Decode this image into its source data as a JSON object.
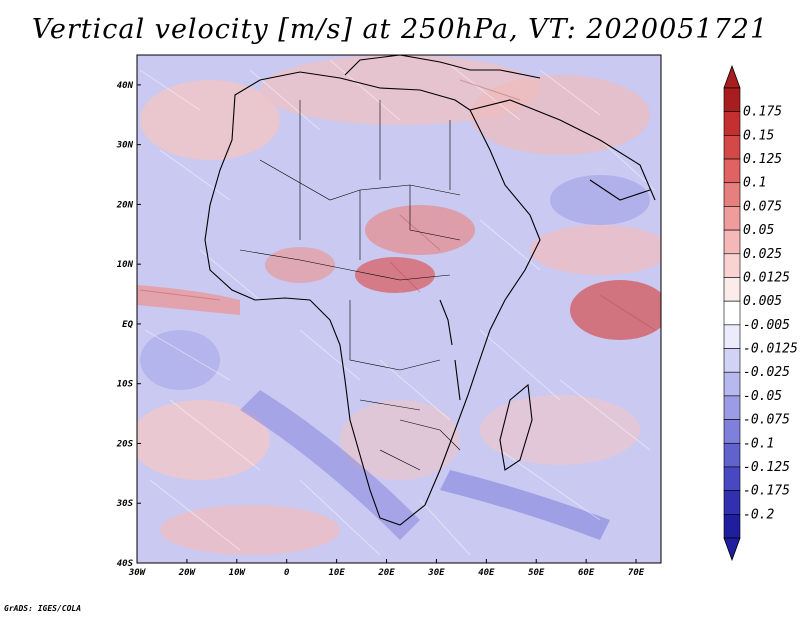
{
  "title": "Vertical velocity [m/s] at 250hPa, VT: 2020051721",
  "credit": "GrADS: IGES/COLA",
  "map": {
    "lat_range": [
      -40,
      45
    ],
    "lon_range": [
      -30,
      75
    ],
    "lat_ticks": [
      "40N",
      "30N",
      "20N",
      "10N",
      "EQ",
      "10S",
      "20S",
      "30S",
      "40S"
    ],
    "lon_ticks": [
      "30W",
      "20W",
      "10W",
      "0",
      "10E",
      "20E",
      "30E",
      "40E",
      "50E",
      "60E",
      "70E"
    ]
  },
  "colorbar": {
    "labels": [
      "0.175",
      "0.15",
      "0.125",
      "0.1",
      "0.075",
      "0.05",
      "0.025",
      "0.0125",
      "0.005",
      "-0.005",
      "-0.0125",
      "-0.025",
      "-0.05",
      "-0.075",
      "-0.1",
      "-0.125",
      "-0.175",
      "-0.2"
    ],
    "colors": [
      "#a81e1e",
      "#c43030",
      "#d44848",
      "#e06262",
      "#e87f7f",
      "#f09c9c",
      "#f5b8b8",
      "#f9d2d2",
      "#fcebeb",
      "#ffffff",
      "#ebebfc",
      "#d2d2f7",
      "#b8b8f0",
      "#9c9ce6",
      "#7f7fdc",
      "#6262cf",
      "#4848c2",
      "#3030b0",
      "#1e1e9e"
    ]
  }
}
